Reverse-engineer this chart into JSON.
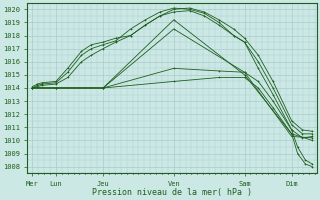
{
  "title": "Pression niveau de la mer( hPa )",
  "ylabel_values": [
    1008,
    1009,
    1010,
    1011,
    1012,
    1013,
    1014,
    1015,
    1016,
    1017,
    1018,
    1019,
    1020
  ],
  "ylim": [
    1007.5,
    1020.5
  ],
  "x_day_labels": [
    "Mer",
    "Lun",
    "Jeu",
    "Ven",
    "Sam",
    "Dim"
  ],
  "x_day_positions": [
    0,
    24,
    72,
    144,
    216,
    264
  ],
  "xlim": [
    -5,
    290
  ],
  "background_color": "#cce8e4",
  "grid_color": "#aacccc",
  "line_color": "#1e5e1e",
  "series": [
    {
      "x": [
        0,
        5,
        10,
        24,
        36,
        50,
        60,
        72,
        85,
        100,
        115,
        130,
        144,
        160,
        175,
        190,
        205,
        216,
        230,
        245,
        264,
        275,
        285
      ],
      "y": [
        1014.1,
        1014.3,
        1014.4,
        1014.5,
        1015.5,
        1016.8,
        1017.3,
        1017.5,
        1017.8,
        1018.0,
        1018.8,
        1019.5,
        1020.0,
        1020.1,
        1019.8,
        1019.2,
        1018.5,
        1017.8,
        1016.5,
        1014.5,
        1011.5,
        1010.8,
        1010.7
      ]
    },
    {
      "x": [
        0,
        5,
        10,
        24,
        36,
        50,
        60,
        72,
        85,
        100,
        115,
        130,
        144,
        160,
        175,
        190,
        205,
        216,
        230,
        245,
        264,
        275,
        285
      ],
      "y": [
        1014.0,
        1014.2,
        1014.3,
        1014.4,
        1015.2,
        1016.5,
        1017.0,
        1017.3,
        1017.6,
        1018.5,
        1019.2,
        1019.8,
        1020.1,
        1020.0,
        1019.7,
        1019.0,
        1018.0,
        1017.5,
        1016.0,
        1014.0,
        1011.2,
        1010.5,
        1010.5
      ]
    },
    {
      "x": [
        0,
        5,
        10,
        24,
        36,
        50,
        60,
        72,
        85,
        100,
        115,
        130,
        144,
        160,
        175,
        190,
        205,
        216,
        230,
        245,
        264,
        275,
        285
      ],
      "y": [
        1014.0,
        1014.1,
        1014.2,
        1014.3,
        1014.8,
        1016.0,
        1016.5,
        1017.0,
        1017.5,
        1018.0,
        1018.8,
        1019.5,
        1019.8,
        1019.9,
        1019.5,
        1018.8,
        1018.0,
        1017.5,
        1015.5,
        1013.5,
        1010.8,
        1010.2,
        1010.3
      ]
    },
    {
      "x": [
        0,
        24,
        72,
        144,
        216,
        264,
        285
      ],
      "y": [
        1014.0,
        1014.0,
        1014.0,
        1019.2,
        1015.0,
        1010.5,
        1010.0
      ]
    },
    {
      "x": [
        0,
        24,
        72,
        144,
        216,
        264,
        285
      ],
      "y": [
        1014.0,
        1014.0,
        1014.0,
        1018.5,
        1015.2,
        1010.3,
        1010.2
      ]
    },
    {
      "x": [
        0,
        24,
        72,
        144,
        190,
        216,
        230,
        245,
        264,
        270,
        278,
        285
      ],
      "y": [
        1014.0,
        1014.0,
        1014.0,
        1015.5,
        1015.3,
        1015.2,
        1014.5,
        1013.0,
        1010.8,
        1009.5,
        1008.5,
        1008.2
      ]
    },
    {
      "x": [
        0,
        24,
        72,
        144,
        190,
        216,
        230,
        245,
        264,
        270,
        278,
        285
      ],
      "y": [
        1014.0,
        1014.0,
        1014.0,
        1014.5,
        1014.8,
        1014.8,
        1014.0,
        1012.5,
        1010.5,
        1009.0,
        1008.2,
        1008.0
      ]
    }
  ]
}
